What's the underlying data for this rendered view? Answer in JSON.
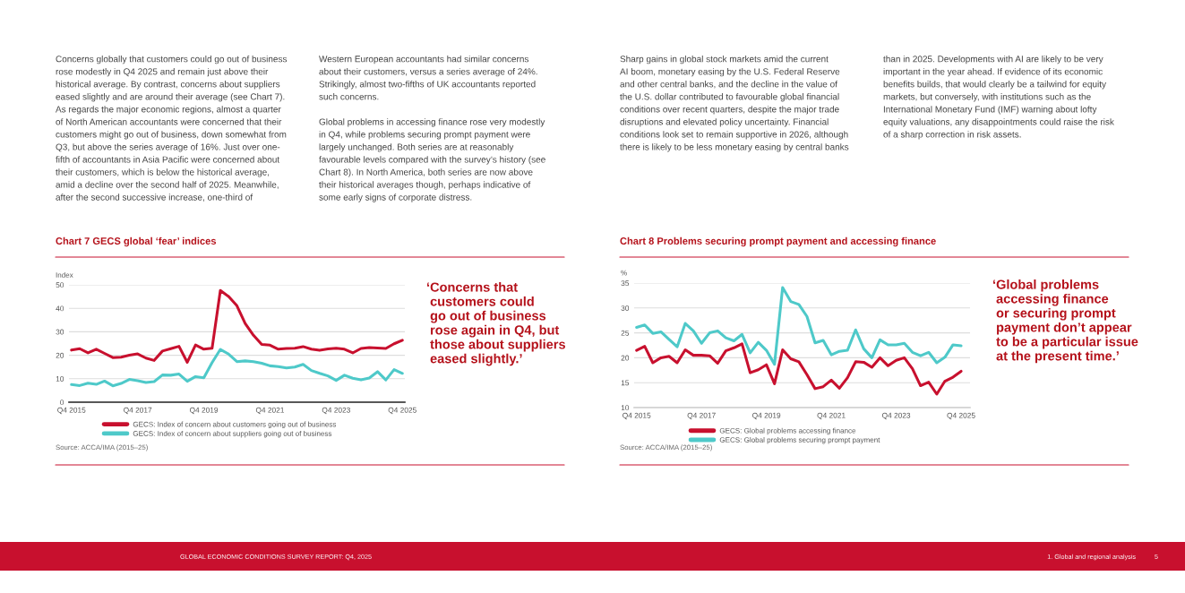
{
  "chart_data": [
    {
      "type": "line",
      "title": "Chart 7 GECS global ‘fear’ indices",
      "ylabel": "Index",
      "categories": [
        "Q4 2015",
        null,
        null,
        null,
        null,
        null,
        null,
        null,
        "Q4 2017",
        null,
        null,
        null,
        null,
        null,
        null,
        null,
        "Q4 2019",
        null,
        null,
        null,
        null,
        null,
        null,
        null,
        "Q4 2021",
        null,
        null,
        null,
        null,
        null,
        null,
        null,
        "Q4 2023",
        null,
        null,
        null,
        null,
        null,
        null,
        null,
        "Q4 2025"
      ],
      "series": [
        {
          "name": "GECS: Index of concern about customers going out of business",
          "color": "#c8102e",
          "values": [
            22.2,
            22.8,
            21.0,
            22.6,
            20.8,
            19.0,
            19.2,
            20.0,
            20.6,
            18.8,
            17.8,
            21.8,
            22.8,
            23.8,
            17.0,
            24.4,
            22.6,
            23.0,
            47.6,
            45.0,
            41.1,
            33.5,
            28.5,
            24.6,
            24.3,
            22.6,
            22.9,
            23.0,
            23.7,
            22.6,
            22.1,
            22.7,
            23.0,
            22.6,
            21.0,
            22.9,
            23.3,
            23.1,
            22.9,
            24.9,
            26.4
          ]
        },
        {
          "name": "GECS: Index of concern about suppliers going out of business",
          "color": "#4ec9c9",
          "values": [
            7.5,
            7.1,
            8.1,
            7.6,
            9.0,
            7.0,
            8.0,
            9.7,
            9.2,
            8.4,
            8.8,
            11.6,
            11.5,
            12.0,
            8.9,
            10.9,
            10.4,
            16.9,
            22.5,
            20.5,
            17.3,
            17.6,
            17.3,
            16.6,
            15.5,
            15.2,
            14.6,
            15.0,
            16.1,
            13.5,
            12.3,
            11.2,
            9.3,
            11.5,
            10.2,
            9.5,
            10.3,
            13.0,
            9.5,
            13.9,
            12.3
          ]
        }
      ],
      "ylim": [
        0,
        50
      ],
      "yticks": [
        0,
        10,
        20,
        30,
        40,
        50
      ],
      "grid": "y",
      "legend": "bottom",
      "annotations": [
        "Concerns globally that customers could go out of business\nrose modestly in Q4 2025 and remain just above their\nhistorical average. By contrast, concerns about suppliers\neased slightly and are around their average (see Chart 7).\nAs regards the major economic regions, almost a quarter\nof North American accountants were concerned that their\ncustomers might go out of business, down somewhat from\nQ3, but above the series average of 16%. Just over one-\nfifth of accountants in Asia Pacific were concerned about\ntheir customers, which is below the historical average,\namid a decline over the second half of 2025. Meanwhile,\nafter the second successive increase, one-third of",
        "Western European accountants had similar concerns\nabout their customers, versus a series average of 24%.\nStrikingly, almost two-fifths of UK accountants reported\nsuch concerns.\n\nGlobal problems in accessing finance rose very modestly\nin Q4, while problems securing prompt payment were\nlargely unchanged. Both series are at reasonably\nfavourable levels compared with the survey’s history (see\nChart 8). In North America, both series are now above\ntheir historical averages though, perhaps indicative of\nsome early signs of corporate distress.",
        "‘Concerns that\n customers could\n go out of business\n rose again in Q4, but\n those about suppliers\n eased slightly.’",
        "Source: ACCA/IMA (2015–25)",
        "GLOBAL ECONOMIC CONDITIONS SURVEY REPORT: Q4, 2025"
      ]
    },
    {
      "type": "line",
      "title": "Chart 8 Problems securing prompt payment and accessing finance",
      "ylabel": "%",
      "categories": [
        "Q4 2015",
        null,
        null,
        null,
        null,
        null,
        null,
        null,
        "Q4 2017",
        null,
        null,
        null,
        null,
        null,
        null,
        null,
        "Q4 2019",
        null,
        null,
        null,
        null,
        null,
        null,
        null,
        "Q4 2021",
        null,
        null,
        null,
        null,
        null,
        null,
        null,
        "Q4 2023",
        null,
        null,
        null,
        null,
        null,
        null,
        null,
        "Q4 2025"
      ],
      "series": [
        {
          "name": "GECS: Global problems accessing finance",
          "color": "#c8102e",
          "values": [
            21.5,
            22.3,
            19.0,
            20.0,
            20.3,
            19.0,
            21.6,
            20.5,
            20.5,
            20.4,
            18.9,
            21.4,
            22.0,
            22.8,
            17.0,
            17.6,
            18.6,
            14.8,
            21.6,
            19.8,
            19.2,
            16.6,
            13.8,
            14.2,
            15.5,
            13.9,
            16.0,
            19.2,
            19.1,
            18.1,
            20.0,
            18.4,
            19.5,
            20.0,
            17.8,
            14.4,
            15.1,
            12.7,
            15.3,
            16.1,
            17.3
          ]
        },
        {
          "name": "GECS: Global problems securing prompt payment",
          "color": "#4ec9c9",
          "values": [
            26.1,
            26.6,
            24.9,
            25.2,
            23.7,
            22.2,
            26.9,
            25.4,
            22.9,
            25.0,
            25.4,
            24.0,
            23.4,
            24.7,
            21.0,
            23.1,
            21.5,
            18.7,
            34.1,
            31.3,
            30.7,
            28.3,
            23.0,
            23.5,
            20.6,
            21.3,
            21.5,
            25.6,
            21.8,
            20.0,
            23.6,
            22.6,
            22.6,
            22.9,
            21.1,
            20.4,
            21.1,
            19.0,
            20.1,
            22.6,
            22.4
          ]
        }
      ],
      "ylim": [
        10,
        35
      ],
      "yticks": [
        10,
        15,
        20,
        25,
        30,
        35
      ],
      "grid": "y",
      "legend": "bottom",
      "annotations": [
        "Sharp gains in global stock markets amid the current\nAI boom, monetary easing by the U.S. Federal Reserve\nand other central banks, and the decline in the value of\nthe U.S. dollar contributed to favourable global financial\nconditions over recent quarters, despite the major trade\ndisruptions and elevated policy uncertainty. Financial\nconditions look set to remain supportive in 2026, although\nthere is likely to be less monetary easing by central banks",
        "than in 2025. Developments with AI are likely to be very\nimportant in the year ahead. If evidence of its economic\nbenefits builds, that would clearly be a tailwind for equity\nmarkets, but conversely, with institutions such as the\nInternational Monetary Fund (IMF) warning about lofty\nequity valuations, any disappointments could raise the risk\nof a sharp correction in risk assets.",
        "‘Global problems\n accessing finance\n or securing prompt\n payment don’t appear\n to be a particular issue\n at the present time.’",
        "Source: ACCA/IMA (2015–25)",
        "1. Global and regional analysis",
        "5"
      ]
    }
  ]
}
